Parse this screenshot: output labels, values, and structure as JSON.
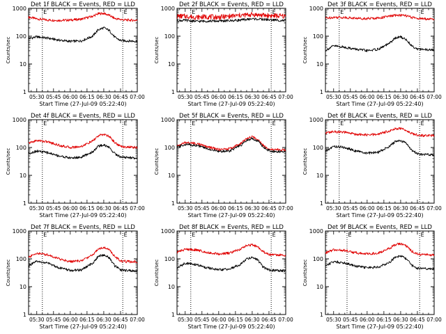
{
  "figure": {
    "xlabel": "Start Time (27-Jul-09 05:22:40)",
    "ylabel": "Counts/sec"
  },
  "colors": {
    "events": "#000000",
    "lld": "#e00000",
    "axes": "#000000"
  },
  "chart_data": [
    {
      "type": "line",
      "title": "Det 1f BLACK = Events, RED = LLD",
      "xlabel": "Start Time (27-Jul-09 05:22:40)",
      "ylabel": "Counts/sec",
      "yscale": "log",
      "ylim": [
        1,
        1000
      ],
      "yticks": [
        "1",
        "10",
        "100",
        "1000"
      ],
      "xticks": [
        "05:30",
        "05:45",
        "06:00",
        "06:15",
        "06:30",
        "06:45",
        "07:00"
      ],
      "x_range": [
        "05:22:40",
        "07:00"
      ],
      "markers": [
        "05:35",
        "06:47"
      ],
      "marker_labels": [
        "E",
        "E"
      ],
      "series": [
        {
          "color": "#e00000",
          "x": [
            "05:22",
            "05:30",
            "05:40",
            "05:50",
            "06:00",
            "06:10",
            "06:20",
            "06:25",
            "06:30",
            "06:35",
            "06:40",
            "06:45",
            "06:50",
            "07:00"
          ],
          "y": [
            490,
            420,
            380,
            370,
            380,
            410,
            520,
            640,
            660,
            560,
            430,
            400,
            380,
            370
          ]
        },
        {
          "color": "#000000",
          "x": [
            "05:22",
            "05:30",
            "05:40",
            "05:50",
            "06:00",
            "06:10",
            "06:20",
            "06:25",
            "06:30",
            "06:35",
            "06:40",
            "06:45",
            "06:50",
            "07:00"
          ],
          "y": [
            80,
            95,
            85,
            72,
            65,
            68,
            100,
            170,
            200,
            160,
            90,
            70,
            68,
            66
          ]
        }
      ]
    },
    {
      "type": "line",
      "title": "Det 2f BLACK = Events, RED = LLD",
      "xlabel": "Start Time (27-Jul-09 05:22:40)",
      "ylabel": "Counts/sec",
      "yscale": "log",
      "ylim": [
        1,
        1000
      ],
      "yticks": [
        "1",
        "10",
        "100",
        "1000"
      ],
      "xticks": [
        "05:30",
        "05:45",
        "06:00",
        "06:15",
        "06:30",
        "06:45",
        "07:00"
      ],
      "x_range": [
        "05:22:40",
        "07:00"
      ],
      "markers": [
        "05:35",
        "06:47"
      ],
      "marker_labels": [
        "E",
        "E"
      ],
      "series": [
        {
          "color": "#e00000",
          "x": [
            "05:22",
            "05:30",
            "05:40",
            "05:50",
            "06:00",
            "06:10",
            "06:20",
            "06:30",
            "06:40",
            "06:50",
            "07:00"
          ],
          "y": [
            520,
            520,
            480,
            500,
            480,
            520,
            560,
            600,
            560,
            540,
            520
          ]
        },
        {
          "color": "#000000",
          "x": [
            "05:22",
            "05:30",
            "05:40",
            "05:50",
            "06:00",
            "06:10",
            "06:20",
            "06:30",
            "06:40",
            "06:50",
            "07:00"
          ],
          "y": [
            360,
            370,
            340,
            350,
            350,
            360,
            380,
            420,
            400,
            380,
            360
          ]
        }
      ]
    },
    {
      "type": "line",
      "title": "Det 3f BLACK = Events, RED = LLD",
      "xlabel": "Start Time (27-Jul-09 05:22:40)",
      "ylabel": "Counts/sec",
      "yscale": "log",
      "ylim": [
        1,
        1000
      ],
      "yticks": [
        "1",
        "10",
        "100",
        "1000"
      ],
      "xticks": [
        "05:30",
        "05:45",
        "06:00",
        "06:15",
        "06:30",
        "06:45",
        "07:00"
      ],
      "x_range": [
        "05:22:40",
        "07:00"
      ],
      "markers": [
        "05:35",
        "06:47"
      ],
      "marker_labels": [
        "E",
        "E"
      ],
      "series": [
        {
          "color": "#e00000",
          "x": [
            "05:22",
            "05:30",
            "05:40",
            "05:50",
            "06:00",
            "06:10",
            "06:20",
            "06:25",
            "06:30",
            "06:35",
            "06:40",
            "06:45",
            "06:50",
            "07:00"
          ],
          "y": [
            440,
            480,
            470,
            440,
            430,
            450,
            520,
            560,
            570,
            540,
            470,
            440,
            420,
            410
          ]
        },
        {
          "color": "#000000",
          "x": [
            "05:22",
            "05:30",
            "05:40",
            "05:50",
            "06:00",
            "06:10",
            "06:20",
            "06:25",
            "06:30",
            "06:35",
            "06:40",
            "06:45",
            "06:50",
            "07:00"
          ],
          "y": [
            30,
            45,
            40,
            34,
            30,
            34,
            55,
            85,
            95,
            75,
            45,
            35,
            33,
            32
          ]
        }
      ]
    },
    {
      "type": "line",
      "title": "Det 4f BLACK = Events, RED = LLD",
      "xlabel": "Start Time (27-Jul-09 05:22:40)",
      "ylabel": "Counts/sec",
      "yscale": "log",
      "ylim": [
        1,
        1000
      ],
      "yticks": [
        "1",
        "10",
        "100",
        "1000"
      ],
      "xticks": [
        "05:30",
        "05:45",
        "06:00",
        "06:15",
        "06:30",
        "06:45",
        "07:00"
      ],
      "x_range": [
        "05:22:40",
        "07:00"
      ],
      "markers": [
        "05:35",
        "06:47"
      ],
      "marker_labels": [
        "E",
        "E"
      ],
      "series": [
        {
          "color": "#e00000",
          "x": [
            "05:22",
            "05:30",
            "05:40",
            "05:50",
            "06:00",
            "06:10",
            "06:20",
            "06:25",
            "06:30",
            "06:35",
            "06:40",
            "06:45",
            "06:50",
            "07:00"
          ],
          "y": [
            140,
            180,
            160,
            120,
            100,
            110,
            170,
            260,
            300,
            250,
            150,
            110,
            105,
            100
          ]
        },
        {
          "color": "#000000",
          "x": [
            "05:22",
            "05:30",
            "05:40",
            "05:50",
            "06:00",
            "06:10",
            "06:20",
            "06:25",
            "06:30",
            "06:35",
            "06:40",
            "06:45",
            "06:50",
            "07:00"
          ],
          "y": [
            60,
            75,
            65,
            50,
            42,
            45,
            70,
            110,
            125,
            100,
            60,
            46,
            44,
            42
          ]
        }
      ]
    },
    {
      "type": "line",
      "title": "Det 5f BLACK = Events, RED = LLD",
      "xlabel": "Start Time (27-Jul-09 05:22:40)",
      "ylabel": "Counts/sec",
      "yscale": "log",
      "ylim": [
        1,
        1000
      ],
      "yticks": [
        "1",
        "10",
        "100",
        "1000"
      ],
      "xticks": [
        "05:30",
        "05:45",
        "06:00",
        "06:15",
        "06:30",
        "06:45",
        "07:00"
      ],
      "x_range": [
        "05:22:40",
        "07:00"
      ],
      "markers": [
        "05:35",
        "06:47"
      ],
      "marker_labels": [
        "E",
        "E"
      ],
      "series": [
        {
          "color": "#e00000",
          "x": [
            "05:22",
            "05:30",
            "05:40",
            "05:50",
            "06:00",
            "06:10",
            "06:20",
            "06:25",
            "06:30",
            "06:35",
            "06:40",
            "06:45",
            "06:50",
            "07:00"
          ],
          "y": [
            110,
            150,
            140,
            105,
            85,
            90,
            140,
            210,
            240,
            200,
            120,
            90,
            85,
            82
          ]
        },
        {
          "color": "#000000",
          "x": [
            "05:22",
            "05:30",
            "05:40",
            "05:50",
            "06:00",
            "06:10",
            "06:20",
            "06:25",
            "06:30",
            "06:35",
            "06:40",
            "06:45",
            "06:50",
            "07:00"
          ],
          "y": [
            100,
            130,
            120,
            90,
            72,
            76,
            120,
            180,
            210,
            175,
            105,
            78,
            72,
            70
          ]
        }
      ]
    },
    {
      "type": "line",
      "title": "Det 6f BLACK = Events, RED = LLD",
      "xlabel": "Start Time (27-Jul-09 05:22:40)",
      "ylabel": "Counts/sec",
      "yscale": "log",
      "ylim": [
        1,
        1000
      ],
      "yticks": [
        "1",
        "10",
        "100",
        "1000"
      ],
      "xticks": [
        "05:30",
        "05:45",
        "06:00",
        "06:15",
        "06:30",
        "06:45",
        "07:00"
      ],
      "x_range": [
        "05:22:40",
        "07:00"
      ],
      "markers": [
        "05:35",
        "06:47"
      ],
      "marker_labels": [
        "E",
        "E"
      ],
      "series": [
        {
          "color": "#e00000",
          "x": [
            "05:22",
            "05:30",
            "05:40",
            "05:50",
            "06:00",
            "06:10",
            "06:20",
            "06:25",
            "06:30",
            "06:35",
            "06:40",
            "06:45",
            "06:50",
            "07:00"
          ],
          "y": [
            330,
            370,
            350,
            300,
            280,
            300,
            400,
            470,
            480,
            420,
            320,
            280,
            270,
            270
          ]
        },
        {
          "color": "#000000",
          "x": [
            "05:22",
            "05:30",
            "05:40",
            "05:50",
            "06:00",
            "06:10",
            "06:20",
            "06:25",
            "06:30",
            "06:35",
            "06:40",
            "06:45",
            "06:50",
            "07:00"
          ],
          "y": [
            70,
            110,
            100,
            75,
            62,
            68,
            110,
            160,
            180,
            140,
            80,
            60,
            56,
            55
          ]
        }
      ]
    },
    {
      "type": "line",
      "title": "Det 7f BLACK = Events, RED = LLD",
      "xlabel": "Start Time (27-Jul-09 05:22:40)",
      "ylabel": "Counts/sec",
      "yscale": "log",
      "ylim": [
        1,
        1000
      ],
      "yticks": [
        "1",
        "10",
        "100",
        "1000"
      ],
      "xticks": [
        "05:30",
        "05:45",
        "06:00",
        "06:15",
        "06:30",
        "06:45",
        "07:00"
      ],
      "x_range": [
        "05:22:40",
        "07:00"
      ],
      "markers": [
        "05:35",
        "06:47"
      ],
      "marker_labels": [
        "E",
        "E"
      ],
      "series": [
        {
          "color": "#e00000",
          "x": [
            "05:22",
            "05:30",
            "05:40",
            "05:50",
            "06:00",
            "06:10",
            "06:20",
            "06:25",
            "06:30",
            "06:35",
            "06:40",
            "06:45",
            "06:50",
            "07:00"
          ],
          "y": [
            110,
            160,
            140,
            100,
            80,
            85,
            140,
            230,
            260,
            210,
            120,
            85,
            80,
            78
          ]
        },
        {
          "color": "#000000",
          "x": [
            "05:22",
            "05:30",
            "05:40",
            "05:50",
            "06:00",
            "06:10",
            "06:20",
            "06:25",
            "06:30",
            "06:35",
            "06:40",
            "06:45",
            "06:50",
            "07:00"
          ],
          "y": [
            55,
            80,
            70,
            48,
            38,
            40,
            70,
            120,
            140,
            110,
            55,
            40,
            38,
            37
          ]
        }
      ]
    },
    {
      "type": "line",
      "title": "Det 8f BLACK = Events, RED = LLD",
      "xlabel": "Start Time (27-Jul-09 05:22:40)",
      "ylabel": "Counts/sec",
      "yscale": "log",
      "ylim": [
        1,
        1000
      ],
      "yticks": [
        "1",
        "10",
        "100",
        "1000"
      ],
      "xticks": [
        "05:30",
        "05:45",
        "06:00",
        "06:15",
        "06:30",
        "06:45",
        "07:00"
      ],
      "x_range": [
        "05:22:40",
        "07:00"
      ],
      "markers": [
        "05:35",
        "06:47"
      ],
      "marker_labels": [
        "E",
        "E"
      ],
      "series": [
        {
          "color": "#e00000",
          "x": [
            "05:22",
            "05:30",
            "05:40",
            "05:50",
            "06:00",
            "06:10",
            "06:20",
            "06:25",
            "06:30",
            "06:35",
            "06:40",
            "06:45",
            "06:50",
            "07:00"
          ],
          "y": [
            170,
            220,
            210,
            170,
            150,
            160,
            230,
            300,
            320,
            270,
            180,
            145,
            140,
            135
          ]
        },
        {
          "color": "#000000",
          "x": [
            "05:22",
            "05:30",
            "05:40",
            "05:50",
            "06:00",
            "06:10",
            "06:20",
            "06:25",
            "06:30",
            "06:35",
            "06:40",
            "06:45",
            "06:50",
            "07:00"
          ],
          "y": [
            45,
            70,
            62,
            47,
            40,
            43,
            65,
            100,
            115,
            90,
            50,
            40,
            38,
            37
          ]
        }
      ]
    },
    {
      "type": "line",
      "title": "Det 9f BLACK = Events, RED = LLD",
      "xlabel": "Start Time (27-Jul-09 05:22:40)",
      "ylabel": "Counts/sec",
      "yscale": "log",
      "ylim": [
        1,
        1000
      ],
      "yticks": [
        "1",
        "10",
        "100",
        "1000"
      ],
      "xticks": [
        "05:30",
        "05:45",
        "06:00",
        "06:15",
        "06:30",
        "06:45",
        "07:00"
      ],
      "x_range": [
        "05:22:40",
        "07:00"
      ],
      "markers": [
        "05:42",
        "06:47"
      ],
      "marker_labels": [
        "E",
        "E"
      ],
      "series": [
        {
          "color": "#e00000",
          "x": [
            "05:22",
            "05:30",
            "05:40",
            "05:50",
            "06:00",
            "06:10",
            "06:20",
            "06:25",
            "06:30",
            "06:35",
            "06:40",
            "06:45",
            "06:50",
            "07:00"
          ],
          "y": [
            160,
            210,
            200,
            165,
            150,
            160,
            240,
            320,
            350,
            290,
            190,
            150,
            140,
            135
          ]
        },
        {
          "color": "#000000",
          "x": [
            "05:22",
            "05:30",
            "05:40",
            "05:50",
            "06:00",
            "06:10",
            "06:20",
            "06:25",
            "06:30",
            "06:35",
            "06:40",
            "06:45",
            "06:50",
            "07:00"
          ],
          "y": [
            55,
            80,
            72,
            55,
            48,
            50,
            75,
            115,
            130,
            100,
            58,
            46,
            44,
            43
          ]
        }
      ]
    }
  ]
}
